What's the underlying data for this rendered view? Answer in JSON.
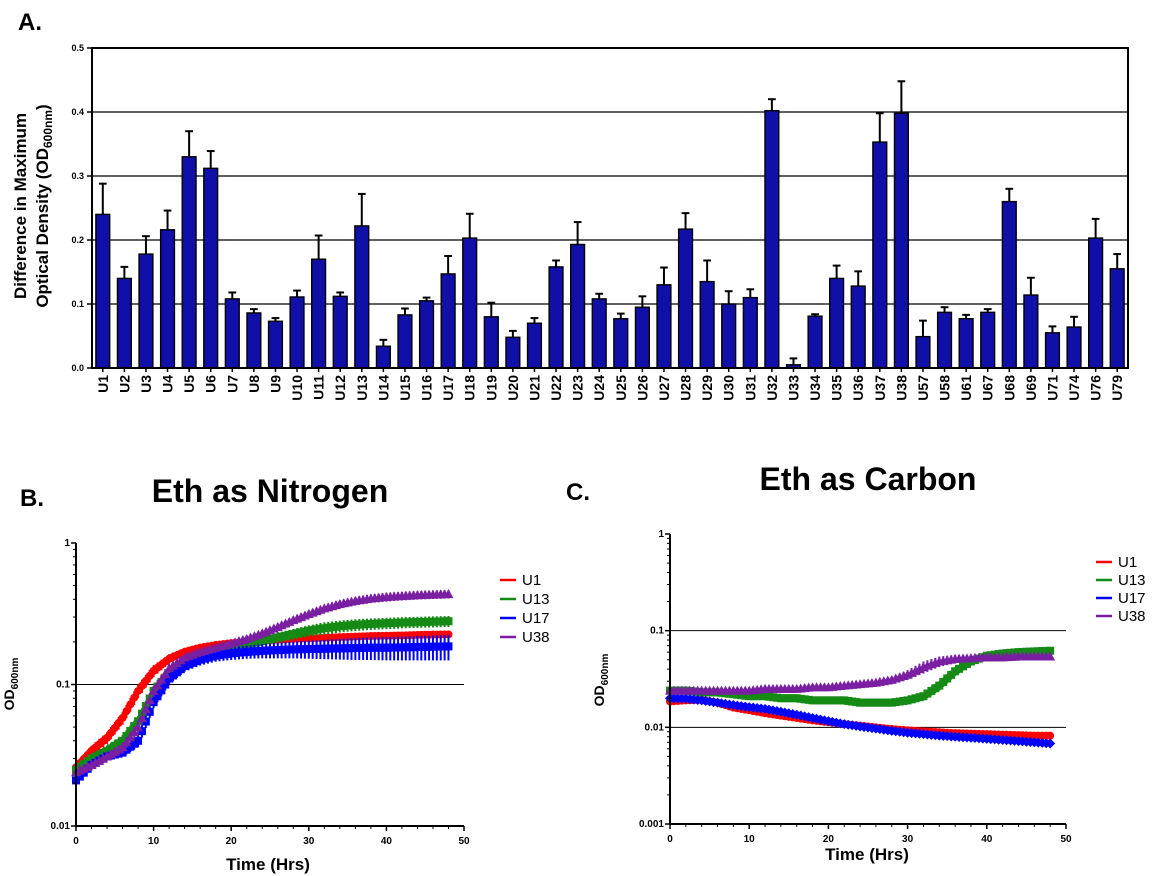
{
  "panels": {
    "a_label": "A.",
    "b_label": "B.",
    "c_label": "C."
  },
  "colors": {
    "bar": "#1010a8",
    "u1": "#ff0000",
    "u13": "#158a15",
    "u17": "#0000ff",
    "u38": "#7a1fa2"
  },
  "chart_data": [
    {
      "type": "bar",
      "panel": "A",
      "title": "",
      "ylabel_line1": "Difference in Maximum",
      "ylabel_line2_prefix": "Optical  Density  (OD",
      "ylabel_line2_sub": "600nm",
      "ylabel_line2_suffix": ")",
      "ylim": [
        0,
        0.5
      ],
      "yticks": [
        "0.0",
        "0.1",
        "0.2",
        "0.3",
        "0.4",
        "0.5"
      ],
      "grid": true,
      "categories": [
        "U1",
        "U2",
        "U3",
        "U4",
        "U5",
        "U6",
        "U7",
        "U8",
        "U9",
        "U10",
        "U11",
        "U12",
        "U13",
        "U14",
        "U15",
        "U16",
        "U17",
        "U18",
        "U19",
        "U20",
        "U21",
        "U22",
        "U23",
        "U24",
        "U25",
        "U26",
        "U27",
        "U28",
        "U29",
        "U30",
        "U31",
        "U32",
        "U33",
        "U34",
        "U35",
        "U36",
        "U37",
        "U38",
        "U57",
        "U58",
        "U61",
        "U67",
        "U68",
        "U69",
        "U71",
        "U74",
        "U76",
        "U79"
      ],
      "values": [
        0.24,
        0.14,
        0.178,
        0.216,
        0.33,
        0.312,
        0.108,
        0.086,
        0.073,
        0.111,
        0.17,
        0.112,
        0.222,
        0.034,
        0.083,
        0.105,
        0.147,
        0.203,
        0.08,
        0.048,
        0.07,
        0.158,
        0.193,
        0.108,
        0.077,
        0.095,
        0.13,
        0.217,
        0.135,
        0.1,
        0.11,
        0.402,
        0.005,
        0.081,
        0.14,
        0.128,
        0.353,
        0.398,
        0.049,
        0.087,
        0.077,
        0.087,
        0.26,
        0.114,
        0.055,
        0.064,
        0.203,
        0.155
      ],
      "errors": [
        0.048,
        0.018,
        0.028,
        0.03,
        0.04,
        0.027,
        0.01,
        0.006,
        0.005,
        0.01,
        0.037,
        0.006,
        0.05,
        0.01,
        0.01,
        0.005,
        0.028,
        0.038,
        0.022,
        0.01,
        0.008,
        0.01,
        0.035,
        0.008,
        0.008,
        0.017,
        0.027,
        0.025,
        0.033,
        0.02,
        0.013,
        0.018,
        0.01,
        0.003,
        0.02,
        0.023,
        0.045,
        0.05,
        0.025,
        0.008,
        0.006,
        0.005,
        0.02,
        0.027,
        0.01,
        0.016,
        0.03,
        0.023
      ]
    },
    {
      "type": "scatter",
      "panel": "B",
      "title": "Eth as Nitrogen",
      "xlabel": "Time (Hrs)",
      "ylabel_prefix": "OD",
      "ylabel_sub": "600nm",
      "xlim": [
        0,
        50
      ],
      "ylim": [
        0.01,
        1
      ],
      "yscale": "log",
      "xticks": [
        "0",
        "10",
        "20",
        "30",
        "40",
        "50"
      ],
      "yticks": [
        "0.01",
        "0.1",
        "1"
      ],
      "grid": true,
      "legend": "right",
      "series": [
        {
          "name": "U1",
          "x": [
            0,
            2,
            4,
            6,
            8,
            10,
            12,
            14,
            16,
            18,
            20,
            22,
            24,
            26,
            28,
            30,
            32,
            34,
            36,
            38,
            40,
            42,
            44,
            46,
            48
          ],
          "y": [
            0.026,
            0.034,
            0.042,
            0.058,
            0.09,
            0.125,
            0.152,
            0.17,
            0.182,
            0.19,
            0.196,
            0.2,
            0.204,
            0.207,
            0.21,
            0.212,
            0.214,
            0.216,
            0.218,
            0.22,
            0.221,
            0.222,
            0.224,
            0.225,
            0.226
          ],
          "err": [
            0.002,
            0.003,
            0.004,
            0.006,
            0.01,
            0.012,
            0.012,
            0.012,
            0.012,
            0.012,
            0.012,
            0.012,
            0.012,
            0.012,
            0.012,
            0.012,
            0.012,
            0.012,
            0.012,
            0.012,
            0.012,
            0.012,
            0.012,
            0.012,
            0.012
          ]
        },
        {
          "name": "U13",
          "x": [
            0,
            2,
            4,
            6,
            8,
            10,
            12,
            14,
            16,
            18,
            20,
            22,
            24,
            26,
            28,
            30,
            32,
            34,
            36,
            38,
            40,
            42,
            44,
            46,
            48
          ],
          "y": [
            0.025,
            0.03,
            0.034,
            0.04,
            0.055,
            0.09,
            0.12,
            0.14,
            0.155,
            0.168,
            0.18,
            0.192,
            0.203,
            0.215,
            0.227,
            0.24,
            0.25,
            0.258,
            0.264,
            0.268,
            0.271,
            0.274,
            0.276,
            0.278,
            0.28
          ],
          "err": [
            0.002,
            0.002,
            0.003,
            0.004,
            0.005,
            0.008,
            0.01,
            0.01,
            0.01,
            0.012,
            0.012,
            0.014,
            0.015,
            0.018,
            0.02,
            0.022,
            0.025,
            0.025,
            0.025,
            0.025,
            0.025,
            0.025,
            0.025,
            0.025,
            0.025
          ]
        },
        {
          "name": "U17",
          "x": [
            0,
            2,
            4,
            6,
            8,
            10,
            12,
            14,
            16,
            18,
            20,
            22,
            24,
            26,
            28,
            30,
            32,
            34,
            36,
            38,
            40,
            42,
            44,
            46,
            48
          ],
          "y": [
            0.021,
            0.027,
            0.031,
            0.033,
            0.04,
            0.075,
            0.11,
            0.135,
            0.15,
            0.16,
            0.166,
            0.17,
            0.173,
            0.175,
            0.177,
            0.178,
            0.179,
            0.18,
            0.181,
            0.182,
            0.182,
            0.183,
            0.184,
            0.185,
            0.186
          ],
          "err": [
            0.001,
            0.002,
            0.002,
            0.002,
            0.004,
            0.007,
            0.01,
            0.012,
            0.014,
            0.015,
            0.017,
            0.018,
            0.02,
            0.022,
            0.024,
            0.026,
            0.028,
            0.03,
            0.032,
            0.033,
            0.034,
            0.035,
            0.036,
            0.037,
            0.038
          ]
        },
        {
          "name": "U38",
          "x": [
            0,
            2,
            4,
            6,
            8,
            10,
            12,
            14,
            16,
            18,
            20,
            22,
            24,
            26,
            28,
            30,
            32,
            34,
            36,
            38,
            40,
            42,
            44,
            46,
            48
          ],
          "y": [
            0.024,
            0.027,
            0.031,
            0.036,
            0.05,
            0.09,
            0.13,
            0.155,
            0.17,
            0.182,
            0.195,
            0.21,
            0.23,
            0.255,
            0.285,
            0.315,
            0.345,
            0.37,
            0.39,
            0.405,
            0.415,
            0.422,
            0.428,
            0.432,
            0.435
          ],
          "err": [
            0.002,
            0.002,
            0.002,
            0.003,
            0.005,
            0.008,
            0.01,
            0.01,
            0.01,
            0.01,
            0.012,
            0.012,
            0.014,
            0.016,
            0.018,
            0.02,
            0.022,
            0.024,
            0.026,
            0.028,
            0.03,
            0.03,
            0.03,
            0.03,
            0.03
          ]
        }
      ]
    },
    {
      "type": "scatter",
      "panel": "C",
      "title": "Eth as Carbon",
      "xlabel": "Time (Hrs)",
      "ylabel_prefix": "OD",
      "ylabel_sub": "600nm",
      "xlim": [
        0,
        50
      ],
      "ylim": [
        0.001,
        1
      ],
      "yscale": "log",
      "xticks": [
        "0",
        "10",
        "20",
        "30",
        "40",
        "50"
      ],
      "yticks": [
        "0.001",
        "0.01",
        "0.1",
        "1"
      ],
      "grid": true,
      "legend": "right",
      "series": [
        {
          "name": "U1",
          "x": [
            0,
            2,
            4,
            6,
            8,
            10,
            12,
            14,
            16,
            18,
            20,
            22,
            24,
            26,
            28,
            30,
            32,
            34,
            36,
            38,
            40,
            42,
            44,
            46,
            48
          ],
          "y": [
            0.0185,
            0.019,
            0.0192,
            0.018,
            0.016,
            0.015,
            0.014,
            0.0132,
            0.0125,
            0.0118,
            0.0113,
            0.0108,
            0.0104,
            0.01,
            0.0096,
            0.0093,
            0.0091,
            0.0089,
            0.0087,
            0.0086,
            0.0085,
            0.0084,
            0.0083,
            0.0082,
            0.0082
          ],
          "err": [
            0.0012,
            0.0012,
            0.0012,
            0.0011,
            0.001,
            0.0009,
            0.0009,
            0.0008,
            0.0008,
            0.0007,
            0.0007,
            0.0007,
            0.0006,
            0.0006,
            0.0006,
            0.0006,
            0.0006,
            0.0006,
            0.0006,
            0.0006,
            0.0006,
            0.0006,
            0.0006,
            0.0006,
            0.0006
          ]
        },
        {
          "name": "U13",
          "x": [
            0,
            2,
            4,
            6,
            8,
            10,
            12,
            14,
            16,
            18,
            20,
            22,
            24,
            26,
            28,
            30,
            32,
            34,
            36,
            38,
            40,
            42,
            44,
            46,
            48
          ],
          "y": [
            0.024,
            0.024,
            0.023,
            0.023,
            0.022,
            0.021,
            0.021,
            0.02,
            0.02,
            0.019,
            0.019,
            0.019,
            0.018,
            0.018,
            0.018,
            0.019,
            0.021,
            0.027,
            0.038,
            0.048,
            0.055,
            0.058,
            0.06,
            0.061,
            0.062
          ],
          "err": [
            0.001,
            0.001,
            0.001,
            0.001,
            0.001,
            0.001,
            0.001,
            0.001,
            0.001,
            0.001,
            0.001,
            0.001,
            0.001,
            0.001,
            0.001,
            0.001,
            0.002,
            0.003,
            0.004,
            0.004,
            0.004,
            0.003,
            0.003,
            0.003,
            0.003
          ]
        },
        {
          "name": "U17",
          "x": [
            0,
            2,
            4,
            6,
            8,
            10,
            12,
            14,
            16,
            18,
            20,
            22,
            24,
            26,
            28,
            30,
            32,
            34,
            36,
            38,
            40,
            42,
            44,
            46,
            48
          ],
          "y": [
            0.02,
            0.0198,
            0.019,
            0.018,
            0.017,
            0.0162,
            0.0155,
            0.0145,
            0.0135,
            0.0125,
            0.0116,
            0.0108,
            0.0102,
            0.0097,
            0.0092,
            0.0088,
            0.0085,
            0.0082,
            0.008,
            0.0078,
            0.0076,
            0.0074,
            0.0072,
            0.007,
            0.0068
          ],
          "err": [
            0.001,
            0.001,
            0.001,
            0.001,
            0.0009,
            0.0009,
            0.0008,
            0.0008,
            0.0008,
            0.0007,
            0.0007,
            0.0006,
            0.0006,
            0.0006,
            0.0006,
            0.0006,
            0.0006,
            0.0006,
            0.0006,
            0.0006,
            0.0006,
            0.0006,
            0.0006,
            0.0006,
            0.0006
          ]
        },
        {
          "name": "U38",
          "x": [
            0,
            2,
            4,
            6,
            8,
            10,
            12,
            14,
            16,
            18,
            20,
            22,
            24,
            26,
            28,
            30,
            32,
            34,
            36,
            38,
            40,
            42,
            44,
            46,
            48
          ],
          "y": [
            0.024,
            0.024,
            0.024,
            0.024,
            0.024,
            0.024,
            0.025,
            0.025,
            0.025,
            0.026,
            0.026,
            0.027,
            0.028,
            0.029,
            0.031,
            0.035,
            0.042,
            0.048,
            0.051,
            0.052,
            0.053,
            0.053,
            0.054,
            0.054,
            0.054
          ],
          "err": [
            0.001,
            0.001,
            0.001,
            0.001,
            0.001,
            0.001,
            0.001,
            0.001,
            0.001,
            0.001,
            0.001,
            0.001,
            0.002,
            0.002,
            0.002,
            0.004,
            0.006,
            0.006,
            0.005,
            0.004,
            0.004,
            0.004,
            0.004,
            0.004,
            0.004
          ]
        }
      ]
    }
  ]
}
